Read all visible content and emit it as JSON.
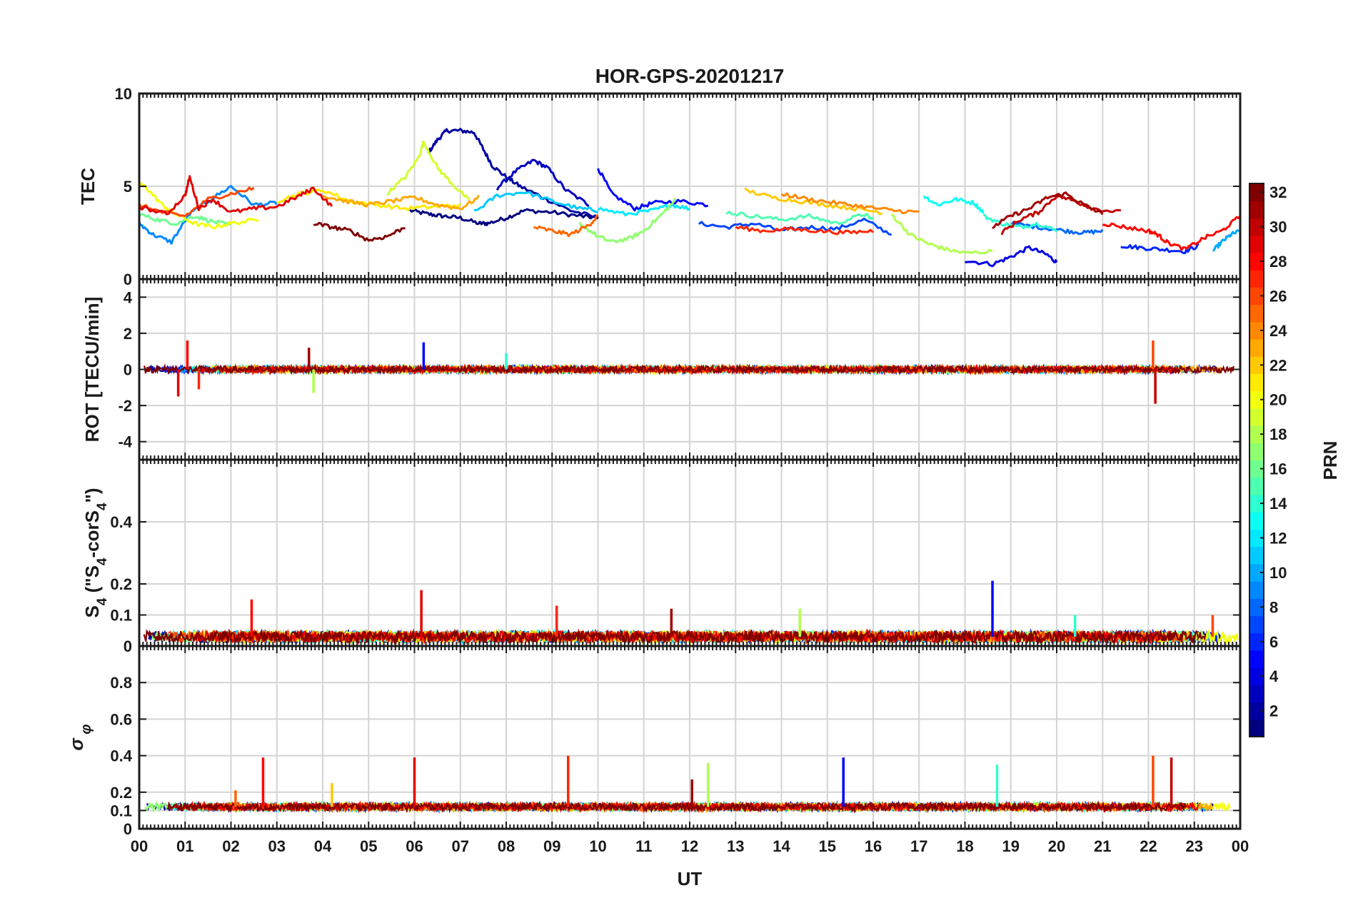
{
  "chart_data": {
    "type": "line",
    "title": "HOR-GPS-20201217",
    "xlabel": "UT",
    "x_tick_labels": [
      "00",
      "01",
      "02",
      "03",
      "04",
      "05",
      "06",
      "07",
      "08",
      "09",
      "10",
      "11",
      "12",
      "13",
      "14",
      "15",
      "16",
      "17",
      "18",
      "19",
      "20",
      "21",
      "22",
      "23",
      "00"
    ],
    "xlim": [
      0,
      24
    ],
    "colormap": "jet",
    "colorbar": {
      "label": "PRN",
      "range": [
        1,
        32
      ],
      "levels": 32,
      "tick_labels": [
        "2",
        "4",
        "6",
        "8",
        "10",
        "12",
        "14",
        "16",
        "18",
        "20",
        "22",
        "24",
        "26",
        "28",
        "30",
        "32"
      ]
    },
    "panels": [
      {
        "name": "tec",
        "ylabel": "TEC",
        "ylim": [
          0,
          10
        ],
        "y_tick_labels": [
          "0",
          "5",
          "10"
        ],
        "series": [
          {
            "prn": 1,
            "x": [
              5.9,
              6.3,
              6.6,
              7.0,
              7.4,
              7.6,
              8.0,
              8.4,
              9.0,
              9.6,
              10.0
            ],
            "y": [
              3.7,
              3.5,
              3.4,
              3.3,
              3.0,
              3.0,
              3.3,
              3.7,
              3.6,
              3.4,
              3.3
            ]
          },
          {
            "prn": 2,
            "x": [
              6.3,
              6.5,
              6.7,
              7.0,
              7.3,
              7.5,
              7.7,
              8.0,
              8.3,
              8.8,
              9.4,
              10.0
            ],
            "y": [
              6.8,
              7.5,
              8.0,
              8.0,
              7.9,
              7.0,
              6.1,
              5.5,
              5.0,
              4.4,
              3.7,
              3.3
            ]
          },
          {
            "prn": 3,
            "x": [
              7.8,
              8.2,
              8.6,
              8.9,
              9.3,
              9.8
            ],
            "y": [
              4.9,
              5.8,
              6.4,
              6.0,
              4.8,
              4.0
            ]
          },
          {
            "prn": 4,
            "x": [
              18.0,
              18.6,
              19.0,
              19.4,
              19.8,
              20.0
            ],
            "y": [
              1.0,
              0.8,
              1.2,
              1.7,
              1.3,
              0.9
            ]
          },
          {
            "prn": 5,
            "x": [
              10.0,
              10.3,
              10.8,
              11.2,
              11.8,
              12.4
            ],
            "y": [
              6.0,
              4.6,
              3.8,
              4.1,
              4.2,
              4.0
            ]
          },
          {
            "prn": 6,
            "x": [
              21.4,
              21.8,
              22.3,
              22.8,
              23.1
            ],
            "y": [
              1.8,
              1.7,
              1.6,
              1.5,
              1.8
            ]
          },
          {
            "prn": 7,
            "x": [
              12.2,
              12.8,
              13.4,
              14.0,
              14.6,
              15.2,
              15.8,
              16.4
            ],
            "y": [
              3.0,
              2.8,
              3.0,
              2.6,
              2.8,
              2.7,
              3.2,
              2.4
            ]
          },
          {
            "prn": 8,
            "x": [
              19.0,
              19.6,
              20.2,
              20.6,
              21.0
            ],
            "y": [
              3.0,
              2.8,
              2.6,
              2.5,
              2.6
            ]
          },
          {
            "prn": 9,
            "x": [
              0.0,
              0.3,
              0.7,
              1.1,
              1.5,
              2.0,
              2.5,
              3.0
            ],
            "y": [
              3.0,
              2.4,
              2.0,
              3.5,
              4.2,
              5.0,
              4.0,
              4.1
            ]
          },
          {
            "prn": 10,
            "x": [
              23.4,
              23.6,
              23.8,
              24.0
            ],
            "y": [
              1.5,
              2.0,
              2.4,
              2.6
            ]
          },
          {
            "prn": 11,
            "x": [
              7.3,
              7.8,
              8.4,
              9.0,
              9.6,
              10.0
            ],
            "y": [
              3.6,
              4.5,
              4.7,
              4.2,
              3.8,
              3.7
            ]
          },
          {
            "prn": 12,
            "x": [
              10.0,
              10.6,
              11.2,
              11.6,
              12.0
            ],
            "y": [
              3.8,
              3.5,
              3.7,
              4.0,
              3.8
            ]
          },
          {
            "prn": 13,
            "x": [
              17.1,
              17.4,
              17.8,
              18.2,
              18.4
            ],
            "y": [
              4.5,
              4.0,
              4.3,
              4.1,
              3.6
            ]
          },
          {
            "prn": 14,
            "x": [
              18.4,
              18.8,
              19.2,
              19.6,
              20.0
            ],
            "y": [
              3.4,
              3.0,
              2.8,
              3.0,
              2.6
            ]
          },
          {
            "prn": 15,
            "x": [
              12.8,
              13.4,
              14.0,
              14.6,
              15.2,
              15.8,
              16.0
            ],
            "y": [
              3.6,
              3.4,
              3.2,
              3.4,
              3.0,
              3.5,
              3.2
            ]
          },
          {
            "prn": 16,
            "x": [
              0.0,
              0.4,
              0.8,
              1.2,
              1.6,
              2.0
            ],
            "y": [
              3.5,
              3.2,
              3.0,
              3.4,
              3.1,
              2.9
            ]
          },
          {
            "prn": 17,
            "x": [
              9.6,
              10.0,
              10.3,
              10.7,
              11.0,
              11.4,
              11.7
            ],
            "y": [
              3.0,
              2.3,
              2.0,
              2.2,
              2.6,
              3.5,
              4.3
            ]
          },
          {
            "prn": 18,
            "x": [
              16.4,
              16.8,
              17.2,
              17.6,
              18.0,
              18.6
            ],
            "y": [
              3.5,
              2.4,
              1.9,
              1.6,
              1.4,
              1.5
            ]
          },
          {
            "prn": 19,
            "x": [
              5.4,
              5.8,
              6.1,
              6.2,
              6.5,
              6.8,
              7.2
            ],
            "y": [
              4.6,
              5.5,
              6.6,
              7.4,
              6.0,
              5.2,
              4.2
            ]
          },
          {
            "prn": 20,
            "x": [
              0.0,
              0.2,
              0.5,
              0.8,
              1.2,
              1.6,
              2.0,
              2.6
            ],
            "y": [
              5.2,
              4.8,
              4.0,
              3.5,
              3.0,
              2.8,
              3.0,
              3.2
            ]
          },
          {
            "prn": 21,
            "x": [
              3.0,
              3.5,
              4.0,
              4.6,
              5.2,
              5.8,
              6.4,
              7.0
            ],
            "y": [
              4.2,
              4.6,
              4.8,
              4.2,
              4.0,
              3.8,
              3.9,
              4.0
            ]
          },
          {
            "prn": 22,
            "x": [
              13.2,
              13.8,
              14.4,
              15.0,
              15.6,
              16.2
            ],
            "y": [
              4.8,
              4.4,
              4.2,
              4.0,
              3.8,
              3.6
            ]
          },
          {
            "prn": 23,
            "x": [
              4.0,
              4.5,
              5.0,
              5.5,
              6.0,
              6.5,
              7.0,
              7.4
            ],
            "y": [
              4.5,
              4.2,
              4.0,
              4.2,
              4.4,
              4.0,
              3.8,
              4.4
            ]
          },
          {
            "prn": 24,
            "x": [
              14.0,
              14.6,
              15.2,
              15.8,
              16.4,
              17.0
            ],
            "y": [
              4.6,
              4.3,
              4.1,
              3.9,
              3.7,
              3.6
            ]
          },
          {
            "prn": 25,
            "x": [
              8.6,
              9.0,
              9.4,
              9.8,
              10.0
            ],
            "y": [
              2.8,
              2.6,
              2.4,
              2.9,
              3.4
            ]
          },
          {
            "prn": 26,
            "x": [
              0.0,
              0.5,
              1.0,
              1.5,
              2.0,
              2.5
            ],
            "y": [
              4.0,
              3.6,
              3.4,
              4.3,
              4.6,
              4.9
            ]
          },
          {
            "prn": 27,
            "x": [
              13.0,
              13.6,
              14.2,
              14.8,
              15.4,
              16.0
            ],
            "y": [
              2.8,
              2.6,
              2.7,
              2.6,
              2.5,
              2.6
            ]
          },
          {
            "prn": 28,
            "x": [
              21.0,
              21.5,
              22.0,
              22.2,
              22.4,
              22.8,
              23.2,
              23.6,
              24.0
            ],
            "y": [
              3.0,
              2.8,
              2.6,
              2.4,
              2.0,
              1.6,
              2.2,
              2.6,
              3.4
            ]
          },
          {
            "prn": 29,
            "x": [
              0.0,
              0.6,
              1.0,
              1.1,
              1.3,
              1.6,
              2.0,
              2.5,
              3.0,
              3.5,
              3.8,
              4.2
            ],
            "y": [
              3.9,
              3.5,
              4.5,
              5.5,
              3.8,
              4.3,
              3.6,
              3.8,
              3.9,
              4.5,
              4.9,
              3.9
            ]
          },
          {
            "prn": 30,
            "x": [
              18.8,
              19.2,
              19.6,
              20.0,
              20.4,
              20.8,
              21.4
            ],
            "y": [
              2.5,
              3.2,
              3.6,
              4.5,
              4.2,
              3.8,
              3.6
            ]
          },
          {
            "prn": 31,
            "x": [
              18.6,
              19.0,
              19.4,
              19.8,
              20.2,
              20.6,
              21.0
            ],
            "y": [
              2.8,
              3.4,
              3.8,
              4.4,
              4.6,
              4.0,
              3.5
            ]
          },
          {
            "prn": 32,
            "x": [
              3.8,
              4.2,
              4.6,
              5.0,
              5.4,
              5.8
            ],
            "y": [
              3.0,
              2.8,
              2.6,
              2.1,
              2.3,
              2.8
            ]
          }
        ]
      },
      {
        "name": "rot",
        "ylabel": "ROT [TECU/min]",
        "ylim": [
          -5,
          5
        ],
        "y_tick_labels": [
          "-4",
          "-2",
          "0",
          "2",
          "4"
        ],
        "extremes": [
          {
            "x": 1.05,
            "y": 1.6
          },
          {
            "x": 0.85,
            "y": -1.5
          },
          {
            "x": 1.3,
            "y": -1.1
          },
          {
            "x": 3.7,
            "y": 1.2
          },
          {
            "x": 3.8,
            "y": -1.3
          },
          {
            "x": 6.2,
            "y": 1.5
          },
          {
            "x": 8.0,
            "y": 0.9
          },
          {
            "x": 22.1,
            "y": 1.6
          },
          {
            "x": 22.15,
            "y": -1.9
          }
        ]
      },
      {
        "name": "s4",
        "ylabel": "S_4 (\"S_4-corS_4\")",
        "ylim": [
          0,
          0.6
        ],
        "y_tick_labels": [
          "0",
          "0.1",
          "0.2",
          "0.4"
        ],
        "baseline": 0.03,
        "peaks": [
          {
            "x": 2.45,
            "y": 0.15
          },
          {
            "x": 6.15,
            "y": 0.18
          },
          {
            "x": 9.1,
            "y": 0.13
          },
          {
            "x": 11.6,
            "y": 0.12
          },
          {
            "x": 14.4,
            "y": 0.12
          },
          {
            "x": 18.6,
            "y": 0.21
          },
          {
            "x": 20.4,
            "y": 0.1
          },
          {
            "x": 23.4,
            "y": 0.1
          }
        ]
      },
      {
        "name": "sigma_phi",
        "ylabel": "σ φ",
        "ylim": [
          0,
          1
        ],
        "y_tick_labels": [
          "0",
          "0.1",
          "0.2",
          "0.4",
          "0.6",
          "0.8"
        ],
        "baseline": 0.12,
        "peaks": [
          {
            "x": 2.7,
            "y": 0.39
          },
          {
            "x": 6.0,
            "y": 0.39
          },
          {
            "x": 9.35,
            "y": 0.4
          },
          {
            "x": 12.05,
            "y": 0.27
          },
          {
            "x": 12.4,
            "y": 0.36
          },
          {
            "x": 15.35,
            "y": 0.39
          },
          {
            "x": 18.7,
            "y": 0.35
          },
          {
            "x": 22.1,
            "y": 0.4
          },
          {
            "x": 22.5,
            "y": 0.39
          },
          {
            "x": 4.2,
            "y": 0.25
          },
          {
            "x": 2.1,
            "y": 0.21
          }
        ]
      }
    ]
  }
}
